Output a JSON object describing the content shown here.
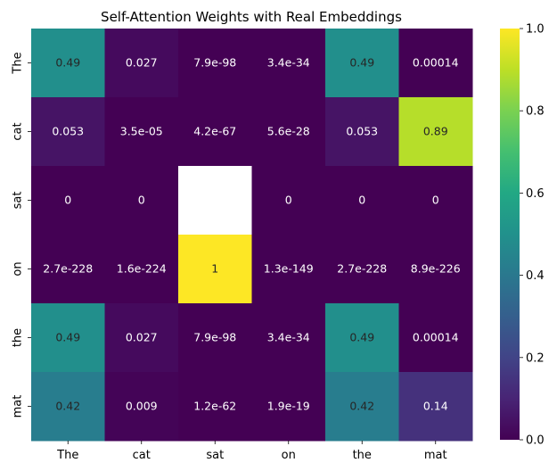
{
  "chart_data": {
    "type": "heatmap",
    "title": "Self-Attention Weights with Real Embeddings",
    "xlabel": "",
    "ylabel": "",
    "x_labels": [
      "The",
      "cat",
      "sat",
      "on",
      "the",
      "mat"
    ],
    "y_labels": [
      "The",
      "cat",
      "sat",
      "on",
      "the",
      "mat"
    ],
    "values": [
      [
        0.49,
        0.027,
        7.9e-98,
        3.4e-34,
        0.49,
        0.00014
      ],
      [
        0.053,
        3.5e-05,
        4.2e-67,
        5.6e-28,
        0.053,
        0.89
      ],
      [
        0,
        0,
        null,
        0,
        0,
        0
      ],
      [
        2.7e-228,
        1.6e-224,
        1,
        1.3e-149,
        2.7e-228,
        8.9e-226
      ],
      [
        0.49,
        0.027,
        7.9e-98,
        3.4e-34,
        0.49,
        0.00014
      ],
      [
        0.42,
        0.009,
        1.2e-62,
        1.9e-19,
        0.42,
        0.14
      ]
    ],
    "annotations": [
      [
        "0.49",
        "0.027",
        "7.9e-98",
        "3.4e-34",
        "0.49",
        "0.00014"
      ],
      [
        "0.053",
        "3.5e-05",
        "4.2e-67",
        "5.6e-28",
        "0.053",
        "0.89"
      ],
      [
        "0",
        "0",
        "",
        "0",
        "0",
        "0"
      ],
      [
        "2.7e-228",
        "1.6e-224",
        "1",
        "1.3e-149",
        "2.7e-228",
        "8.9e-226"
      ],
      [
        "0.49",
        "0.027",
        "7.9e-98",
        "3.4e-34",
        "0.49",
        "0.00014"
      ],
      [
        "0.42",
        "0.009",
        "1.2e-62",
        "1.9e-19",
        "0.42",
        "0.14"
      ]
    ],
    "colormap": "viridis",
    "vmin": 0,
    "vmax": 1,
    "colorbar_ticks": [
      0.0,
      0.2,
      0.4,
      0.6,
      0.8,
      1.0
    ],
    "colorbar_tick_labels": [
      "0.0",
      "0.2",
      "0.4",
      "0.6",
      "0.8",
      "1.0"
    ],
    "colorbar_position": "right"
  }
}
